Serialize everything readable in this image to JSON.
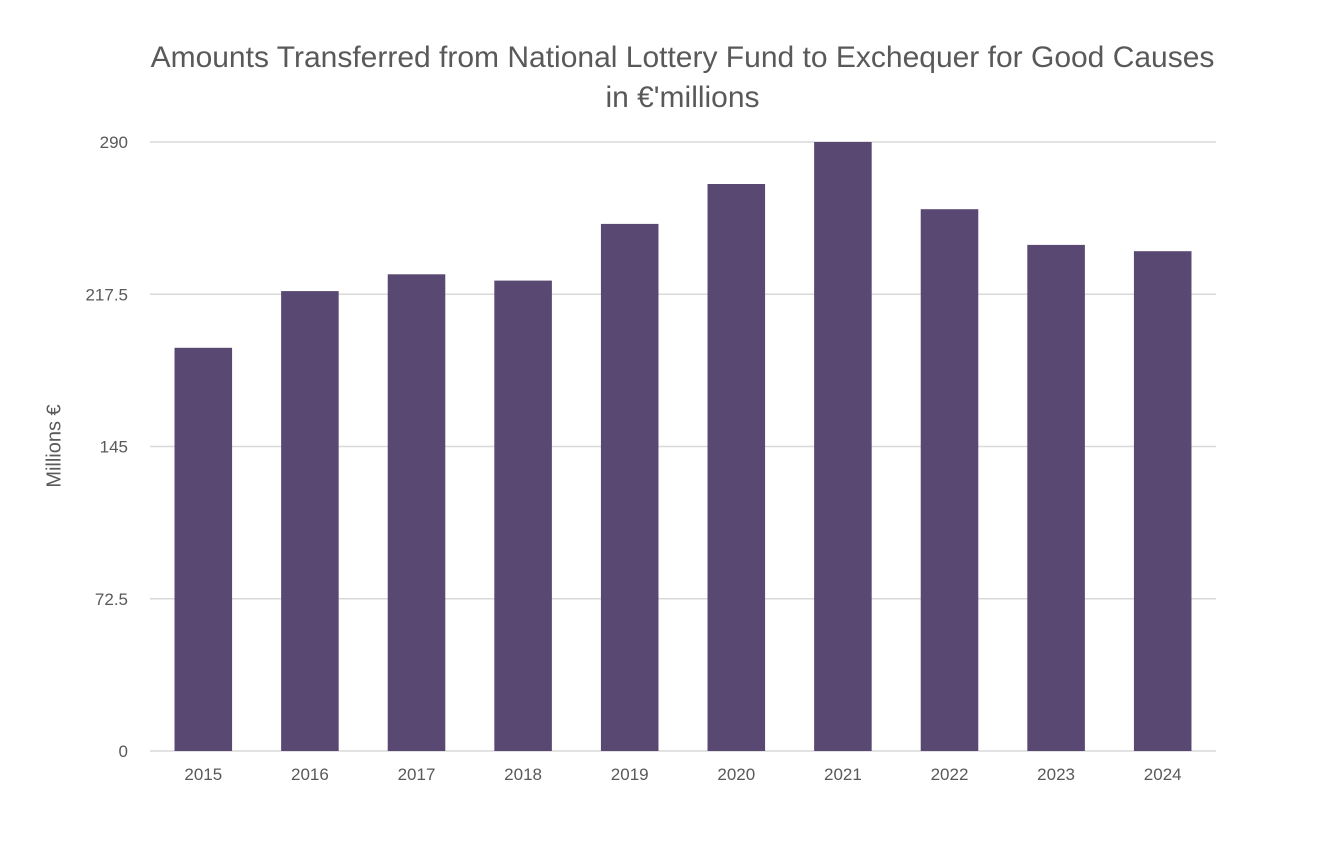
{
  "chart_data": {
    "type": "bar",
    "title": "Amounts Transferred from National Lottery Fund to Exchequer for Good Causes in €'millions",
    "xlabel": "",
    "ylabel": "Millions €",
    "categories": [
      "2015",
      "2016",
      "2017",
      "2018",
      "2019",
      "2020",
      "2021",
      "2022",
      "2023",
      "2024"
    ],
    "values": [
      192,
      219,
      227,
      224,
      251,
      270,
      290,
      258,
      241,
      238
    ],
    "ylim": [
      0,
      290
    ],
    "yticks": [
      0,
      72.5,
      145,
      217.5,
      290
    ],
    "ytick_labels": [
      "0",
      "72.5",
      "145",
      "217.5",
      "290"
    ],
    "grid": true,
    "legend": "none",
    "colors": {
      "bar": "#594872",
      "grid": "#d9d9d9",
      "text": "#595959"
    }
  }
}
